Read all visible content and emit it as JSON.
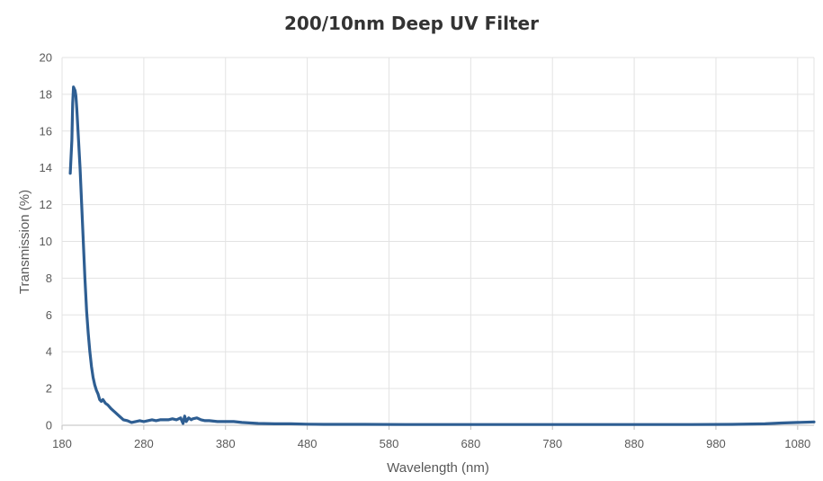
{
  "chart_data": {
    "type": "line",
    "title": "200/10nm Deep UV Filter",
    "xlabel": "Wavelength (nm)",
    "ylabel": "Transmission (%)",
    "xlim": [
      180,
      1100
    ],
    "ylim": [
      0,
      20
    ],
    "x_ticks": [
      "180",
      "280",
      "380",
      "480",
      "580",
      "680",
      "780",
      "880",
      "980",
      "1080"
    ],
    "y_ticks": [
      "0",
      "2",
      "4",
      "6",
      "8",
      "10",
      "12",
      "14",
      "16",
      "18",
      "20"
    ],
    "grid": true,
    "legend": "none",
    "line_color": "#2e5e92",
    "series": [
      {
        "x": [
          190,
          192,
          193,
          194,
          195,
          196,
          197,
          198,
          200,
          202,
          204,
          206,
          208,
          210,
          212,
          214,
          216,
          218,
          220,
          222,
          224,
          226,
          228,
          230,
          233,
          236,
          240,
          245,
          250,
          255,
          260,
          265,
          270,
          275,
          280,
          285,
          290,
          295,
          300,
          305,
          310,
          315,
          320,
          325,
          328,
          330,
          332,
          335,
          338,
          340,
          345,
          350,
          355,
          360,
          370,
          380,
          390,
          400,
          420,
          440,
          460,
          480,
          500,
          550,
          600,
          650,
          700,
          750,
          800,
          850,
          900,
          950,
          1000,
          1040,
          1060,
          1080,
          1100
        ],
        "y": [
          13.7,
          15.5,
          17.5,
          18.4,
          18.3,
          18.2,
          17.9,
          17.2,
          15.6,
          14.0,
          12.0,
          10.0,
          8.0,
          6.2,
          5.0,
          4.0,
          3.2,
          2.6,
          2.2,
          1.9,
          1.7,
          1.4,
          1.3,
          1.4,
          1.2,
          1.1,
          0.9,
          0.7,
          0.5,
          0.3,
          0.25,
          0.15,
          0.2,
          0.25,
          0.2,
          0.25,
          0.3,
          0.25,
          0.3,
          0.3,
          0.3,
          0.35,
          0.3,
          0.4,
          0.1,
          0.5,
          0.2,
          0.4,
          0.3,
          0.35,
          0.4,
          0.3,
          0.25,
          0.25,
          0.2,
          0.2,
          0.2,
          0.15,
          0.1,
          0.08,
          0.08,
          0.06,
          0.05,
          0.05,
          0.04,
          0.04,
          0.04,
          0.04,
          0.04,
          0.04,
          0.04,
          0.04,
          0.05,
          0.08,
          0.12,
          0.15,
          0.18
        ]
      }
    ]
  }
}
